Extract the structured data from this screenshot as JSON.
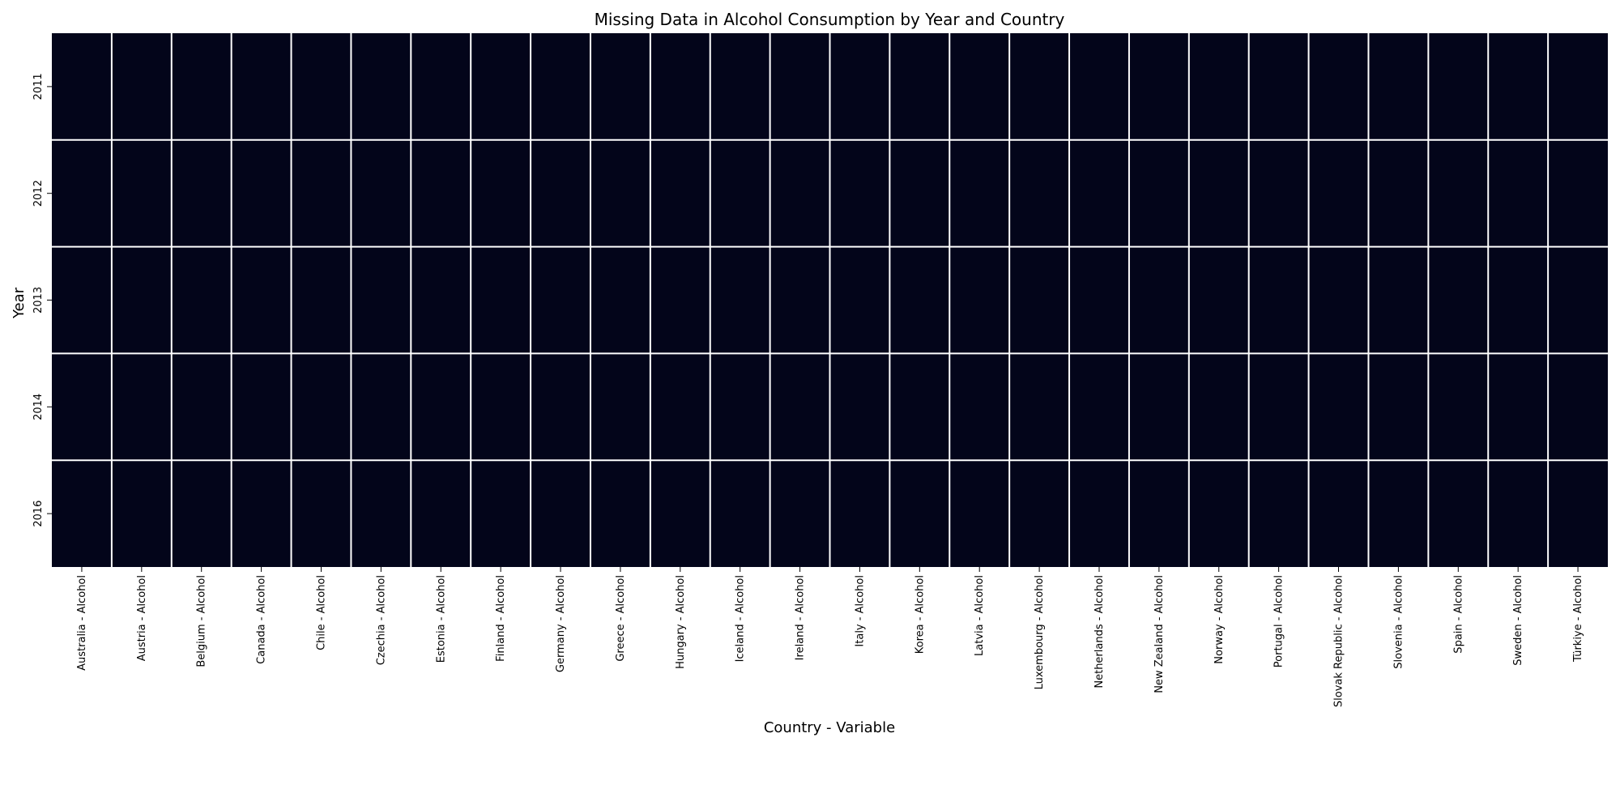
{
  "chart_data": {
    "type": "heatmap",
    "title": "Missing Data in Alcohol Consumption by Year and Country",
    "xlabel": "Country - Variable",
    "ylabel": "Year",
    "columns": [
      "Australia - Alcohol",
      "Austria - Alcohol",
      "Belgium - Alcohol",
      "Canada - Alcohol",
      "Chile - Alcohol",
      "Czechia - Alcohol",
      "Estonia - Alcohol",
      "Finland - Alcohol",
      "Germany - Alcohol",
      "Greece - Alcohol",
      "Hungary - Alcohol",
      "Iceland - Alcohol",
      "Ireland - Alcohol",
      "Italy - Alcohol",
      "Korea - Alcohol",
      "Latvia - Alcohol",
      "Luxembourg - Alcohol",
      "Netherlands - Alcohol",
      "New Zealand - Alcohol",
      "Norway - Alcohol",
      "Portugal - Alcohol",
      "Slovak Republic - Alcohol",
      "Slovenia - Alcohol",
      "Spain - Alcohol",
      "Sweden - Alcohol",
      "Türkiye - Alcohol"
    ],
    "rows": [
      "2011",
      "2012",
      "2013",
      "2014",
      "2016"
    ],
    "values": [
      [
        0,
        0,
        0,
        0,
        0,
        0,
        0,
        0,
        0,
        0,
        0,
        0,
        0,
        0,
        0,
        0,
        0,
        0,
        0,
        0,
        0,
        0,
        0,
        0,
        0,
        0
      ],
      [
        0,
        0,
        0,
        0,
        0,
        0,
        0,
        0,
        0,
        0,
        0,
        0,
        0,
        0,
        0,
        0,
        0,
        0,
        0,
        0,
        0,
        0,
        0,
        0,
        0,
        0
      ],
      [
        0,
        0,
        0,
        0,
        0,
        0,
        0,
        0,
        0,
        0,
        0,
        0,
        0,
        0,
        0,
        0,
        0,
        0,
        0,
        0,
        0,
        0,
        0,
        0,
        0,
        0
      ],
      [
        0,
        0,
        0,
        0,
        0,
        0,
        0,
        0,
        0,
        0,
        0,
        0,
        0,
        0,
        0,
        0,
        0,
        0,
        0,
        0,
        0,
        0,
        0,
        0,
        0,
        0
      ],
      [
        0,
        0,
        0,
        0,
        0,
        0,
        0,
        0,
        0,
        0,
        0,
        0,
        0,
        0,
        0,
        0,
        0,
        0,
        0,
        0,
        0,
        0,
        0,
        0,
        0,
        0
      ]
    ],
    "colors": {
      "false": "#03051a",
      "true": "#faebdd",
      "grid": "#ffffff"
    },
    "colorbar": false
  }
}
